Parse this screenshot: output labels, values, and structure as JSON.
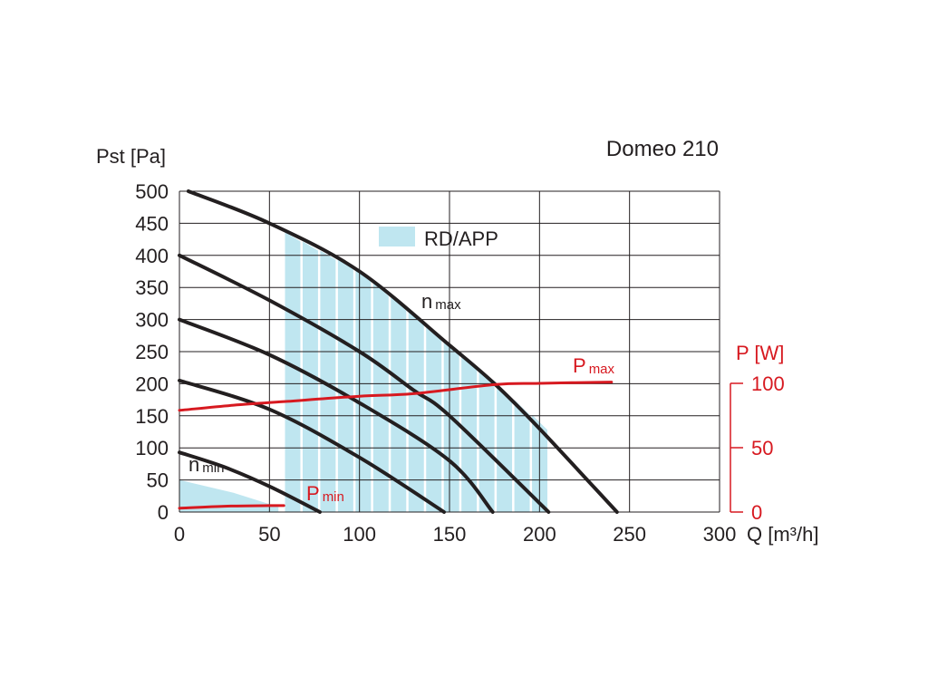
{
  "title": "Domeo 210",
  "legend_label": "RD/APP",
  "colors": {
    "fan_curve": "#231f20",
    "power_curve": "#d71920",
    "region_fill": "#bfe6f0",
    "grid": "#231f20",
    "text": "#231f20"
  },
  "chart_data": {
    "type": "line",
    "title": "Domeo 210",
    "xlabel": "Q [m³/h]",
    "ylabel": "Pst [Pa]",
    "y2label": "P [W]",
    "xlim": [
      0,
      300
    ],
    "ylim": [
      0,
      500
    ],
    "y2lim": [
      0,
      100
    ],
    "x_ticks": [
      "0",
      "50",
      "100",
      "150",
      "200",
      "250",
      "300"
    ],
    "y_ticks": [
      "0",
      "50",
      "100",
      "150",
      "200",
      "250",
      "300",
      "350",
      "400",
      "450",
      "500"
    ],
    "y2_ticks": [
      "0",
      "50",
      "100"
    ],
    "grid": true,
    "legend": {
      "position": "top-center",
      "entries": [
        "RD/APP"
      ]
    },
    "fan_curves": [
      {
        "label": {
          "base": "n",
          "sub": "max"
        },
        "points": [
          [
            5,
            500
          ],
          [
            50,
            450
          ],
          [
            100,
            375
          ],
          [
            150,
            260
          ],
          [
            175,
            200
          ],
          [
            200,
            130
          ],
          [
            243,
            0
          ]
        ]
      },
      {
        "points": [
          [
            0,
            400
          ],
          [
            50,
            330
          ],
          [
            100,
            250
          ],
          [
            130,
            190
          ],
          [
            150,
            150
          ],
          [
            205,
            0
          ]
        ]
      },
      {
        "points": [
          [
            0,
            300
          ],
          [
            50,
            245
          ],
          [
            100,
            170
          ],
          [
            150,
            80
          ],
          [
            174,
            0
          ]
        ]
      },
      {
        "points": [
          [
            0,
            205
          ],
          [
            50,
            160
          ],
          [
            100,
            85
          ],
          [
            147,
            0
          ]
        ]
      },
      {
        "label": {
          "base": "n",
          "sub": "min"
        },
        "points": [
          [
            0,
            93
          ],
          [
            25,
            70
          ],
          [
            50,
            40
          ],
          [
            78,
            0
          ]
        ]
      }
    ],
    "power_curves": [
      {
        "label": {
          "base": "P",
          "sub": "max"
        },
        "axis": "right",
        "points": [
          [
            0,
            79
          ],
          [
            30,
            83
          ],
          [
            60,
            86
          ],
          [
            100,
            90
          ],
          [
            130,
            92
          ],
          [
            175,
            99
          ],
          [
            200,
            100
          ],
          [
            240,
            101
          ]
        ]
      },
      {
        "label": {
          "base": "P",
          "sub": "min"
        },
        "axis": "right",
        "points": [
          [
            0,
            3
          ],
          [
            25,
            4.5
          ],
          [
            50,
            5
          ],
          [
            58,
            5
          ]
        ]
      }
    ],
    "operating_region": {
      "name": "RD/APP",
      "x_range": [
        58,
        205
      ],
      "upper_bound": [
        [
          58,
          436
        ],
        [
          100,
          375
        ],
        [
          150,
          260
        ],
        [
          175,
          200
        ],
        [
          200,
          140
        ],
        [
          205,
          128
        ]
      ],
      "bar_count": 15
    },
    "low_region": {
      "points": [
        [
          0,
          50
        ],
        [
          30,
          30
        ],
        [
          55,
          8
        ],
        [
          55,
          0
        ],
        [
          0,
          0
        ]
      ]
    }
  }
}
